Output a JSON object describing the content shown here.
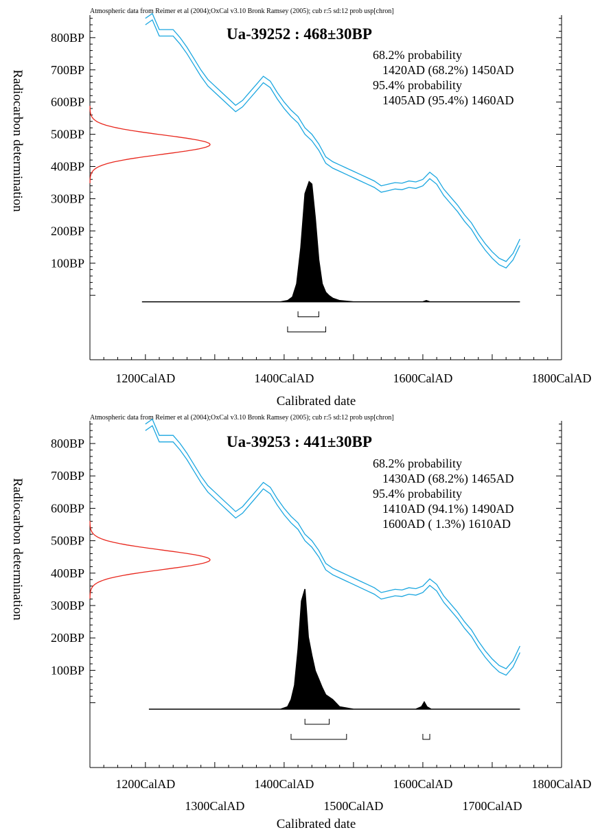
{
  "chart_data": [
    {
      "type": "area",
      "header": "Atmospheric data from Reimer et al (2004);OxCal v3.10 Bronk Ramsey (2005); cub r:5 sd:12 prob usp[chron]",
      "title": "Ua-39252 : 468±30BP",
      "xlabel": "Calibrated date",
      "ylabel": "Radiocarbon determination",
      "xlim": [
        1120,
        1800
      ],
      "ylim": [
        -200,
        870
      ],
      "y_tick_labels": [
        "100BP",
        "200BP",
        "300BP",
        "400BP",
        "500BP",
        "600BP",
        "700BP",
        "800BP"
      ],
      "y_tick_values": [
        100,
        200,
        300,
        400,
        500,
        600,
        700,
        800
      ],
      "x_tick_labels": [
        {
          "value": 1200,
          "label": "1200CalAD",
          "row": 0
        },
        {
          "value": 1400,
          "label": "1400CalAD",
          "row": 0
        },
        {
          "value": 1600,
          "label": "1600CalAD",
          "row": 0
        },
        {
          "value": 1800,
          "label": "1800CalAD",
          "row": 0
        }
      ],
      "probability_text": [
        "68.2% probability",
        "1420AD (68.2%) 1450AD",
        "95.4% probability",
        "1405AD (95.4%) 1460AD"
      ],
      "measurement": {
        "mean": 468,
        "sd": 30
      },
      "calibration_curve": {
        "x": [
          1200,
          1210,
          1220,
          1230,
          1240,
          1250,
          1260,
          1270,
          1280,
          1290,
          1300,
          1310,
          1320,
          1330,
          1340,
          1350,
          1360,
          1370,
          1380,
          1390,
          1400,
          1410,
          1420,
          1430,
          1440,
          1450,
          1460,
          1470,
          1480,
          1490,
          1500,
          1510,
          1520,
          1530,
          1540,
          1550,
          1560,
          1570,
          1580,
          1590,
          1600,
          1610,
          1620,
          1630,
          1640,
          1650,
          1660,
          1670,
          1680,
          1690,
          1700,
          1710,
          1720,
          1730,
          1740
        ],
        "y": [
          850,
          865,
          815,
          815,
          815,
          790,
          760,
          725,
          690,
          660,
          640,
          620,
          600,
          580,
          595,
          620,
          645,
          670,
          655,
          620,
          590,
          565,
          545,
          510,
          490,
          460,
          420,
          405,
          395,
          385,
          375,
          365,
          355,
          345,
          330,
          335,
          340,
          338,
          345,
          342,
          350,
          372,
          355,
          320,
          295,
          270,
          240,
          215,
          180,
          150,
          125,
          105,
          95,
          120,
          165
        ],
        "band": 10
      },
      "posterior": {
        "x": [
          1195,
          1380,
          1395,
          1405,
          1412,
          1418,
          1424,
          1430,
          1436,
          1440,
          1445,
          1450,
          1455,
          1460,
          1465,
          1470,
          1480,
          1500,
          1600,
          1605,
          1610,
          1740
        ],
        "y": [
          0,
          0,
          0,
          0.01,
          0.04,
          0.15,
          0.45,
          0.9,
          1.0,
          0.98,
          0.7,
          0.35,
          0.15,
          0.08,
          0.05,
          0.03,
          0.01,
          0,
          0,
          0.01,
          0,
          0
        ]
      },
      "ranges_1sigma": [
        [
          1420,
          1450
        ]
      ],
      "ranges_2sigma": [
        [
          1405,
          1460
        ]
      ]
    },
    {
      "type": "area",
      "header": "Atmospheric data from Reimer et al (2004);OxCal v3.10 Bronk Ramsey (2005); cub r:5 sd:12 prob usp[chron]",
      "title": "Ua-39253 : 441±30BP",
      "xlabel": "Calibrated date",
      "ylabel": "Radiocarbon determination",
      "xlim": [
        1120,
        1800
      ],
      "ylim": [
        -200,
        870
      ],
      "y_tick_labels": [
        "100BP",
        "200BP",
        "300BP",
        "400BP",
        "500BP",
        "600BP",
        "700BP",
        "800BP"
      ],
      "y_tick_values": [
        100,
        200,
        300,
        400,
        500,
        600,
        700,
        800
      ],
      "x_tick_labels": [
        {
          "value": 1200,
          "label": "1200CalAD",
          "row": 0
        },
        {
          "value": 1300,
          "label": "1300CalAD",
          "row": 1
        },
        {
          "value": 1400,
          "label": "1400CalAD",
          "row": 0
        },
        {
          "value": 1500,
          "label": "1500CalAD",
          "row": 1
        },
        {
          "value": 1600,
          "label": "1600CalAD",
          "row": 0
        },
        {
          "value": 1700,
          "label": "1700CalAD",
          "row": 1
        },
        {
          "value": 1800,
          "label": "1800CalAD",
          "row": 0
        }
      ],
      "probability_text": [
        "68.2% probability",
        "1430AD (68.2%) 1465AD",
        "95.4% probability",
        "1410AD (94.1%) 1490AD",
        "1600AD ( 1.3%) 1610AD"
      ],
      "measurement": {
        "mean": 441,
        "sd": 30
      },
      "calibration_curve": {
        "x": [
          1200,
          1210,
          1220,
          1230,
          1240,
          1250,
          1260,
          1270,
          1280,
          1290,
          1300,
          1310,
          1320,
          1330,
          1340,
          1350,
          1360,
          1370,
          1380,
          1390,
          1400,
          1410,
          1420,
          1430,
          1440,
          1450,
          1460,
          1470,
          1480,
          1490,
          1500,
          1510,
          1520,
          1530,
          1540,
          1550,
          1560,
          1570,
          1580,
          1590,
          1600,
          1610,
          1620,
          1630,
          1640,
          1650,
          1660,
          1670,
          1680,
          1690,
          1700,
          1710,
          1720,
          1730,
          1740
        ],
        "y": [
          850,
          865,
          815,
          815,
          815,
          790,
          760,
          725,
          690,
          660,
          640,
          620,
          600,
          580,
          595,
          620,
          645,
          670,
          655,
          620,
          590,
          565,
          545,
          510,
          490,
          460,
          420,
          405,
          395,
          385,
          375,
          365,
          355,
          345,
          330,
          335,
          340,
          338,
          345,
          342,
          350,
          372,
          355,
          320,
          295,
          270,
          240,
          215,
          180,
          150,
          125,
          105,
          95,
          120,
          165
        ],
        "band": 10
      },
      "posterior": {
        "x": [
          1205,
          1395,
          1405,
          1410,
          1415,
          1420,
          1425,
          1430,
          1435,
          1440,
          1445,
          1450,
          1455,
          1460,
          1465,
          1470,
          1475,
          1480,
          1490,
          1500,
          1520,
          1590,
          1598,
          1602,
          1606,
          1612,
          1740
        ],
        "y": [
          0,
          0,
          0.02,
          0.08,
          0.2,
          0.5,
          0.9,
          1.0,
          0.6,
          0.45,
          0.32,
          0.25,
          0.18,
          0.12,
          0.1,
          0.08,
          0.05,
          0.02,
          0.01,
          0,
          0,
          0,
          0.02,
          0.06,
          0.02,
          0,
          0
        ]
      },
      "ranges_1sigma": [
        [
          1430,
          1465
        ]
      ],
      "ranges_2sigma": [
        [
          1410,
          1490
        ],
        [
          1600,
          1610
        ]
      ]
    }
  ],
  "colors": {
    "axis": "#000000",
    "curve": "#1aa6e0",
    "measurement": "#e8261c",
    "posterior": "#000000"
  }
}
